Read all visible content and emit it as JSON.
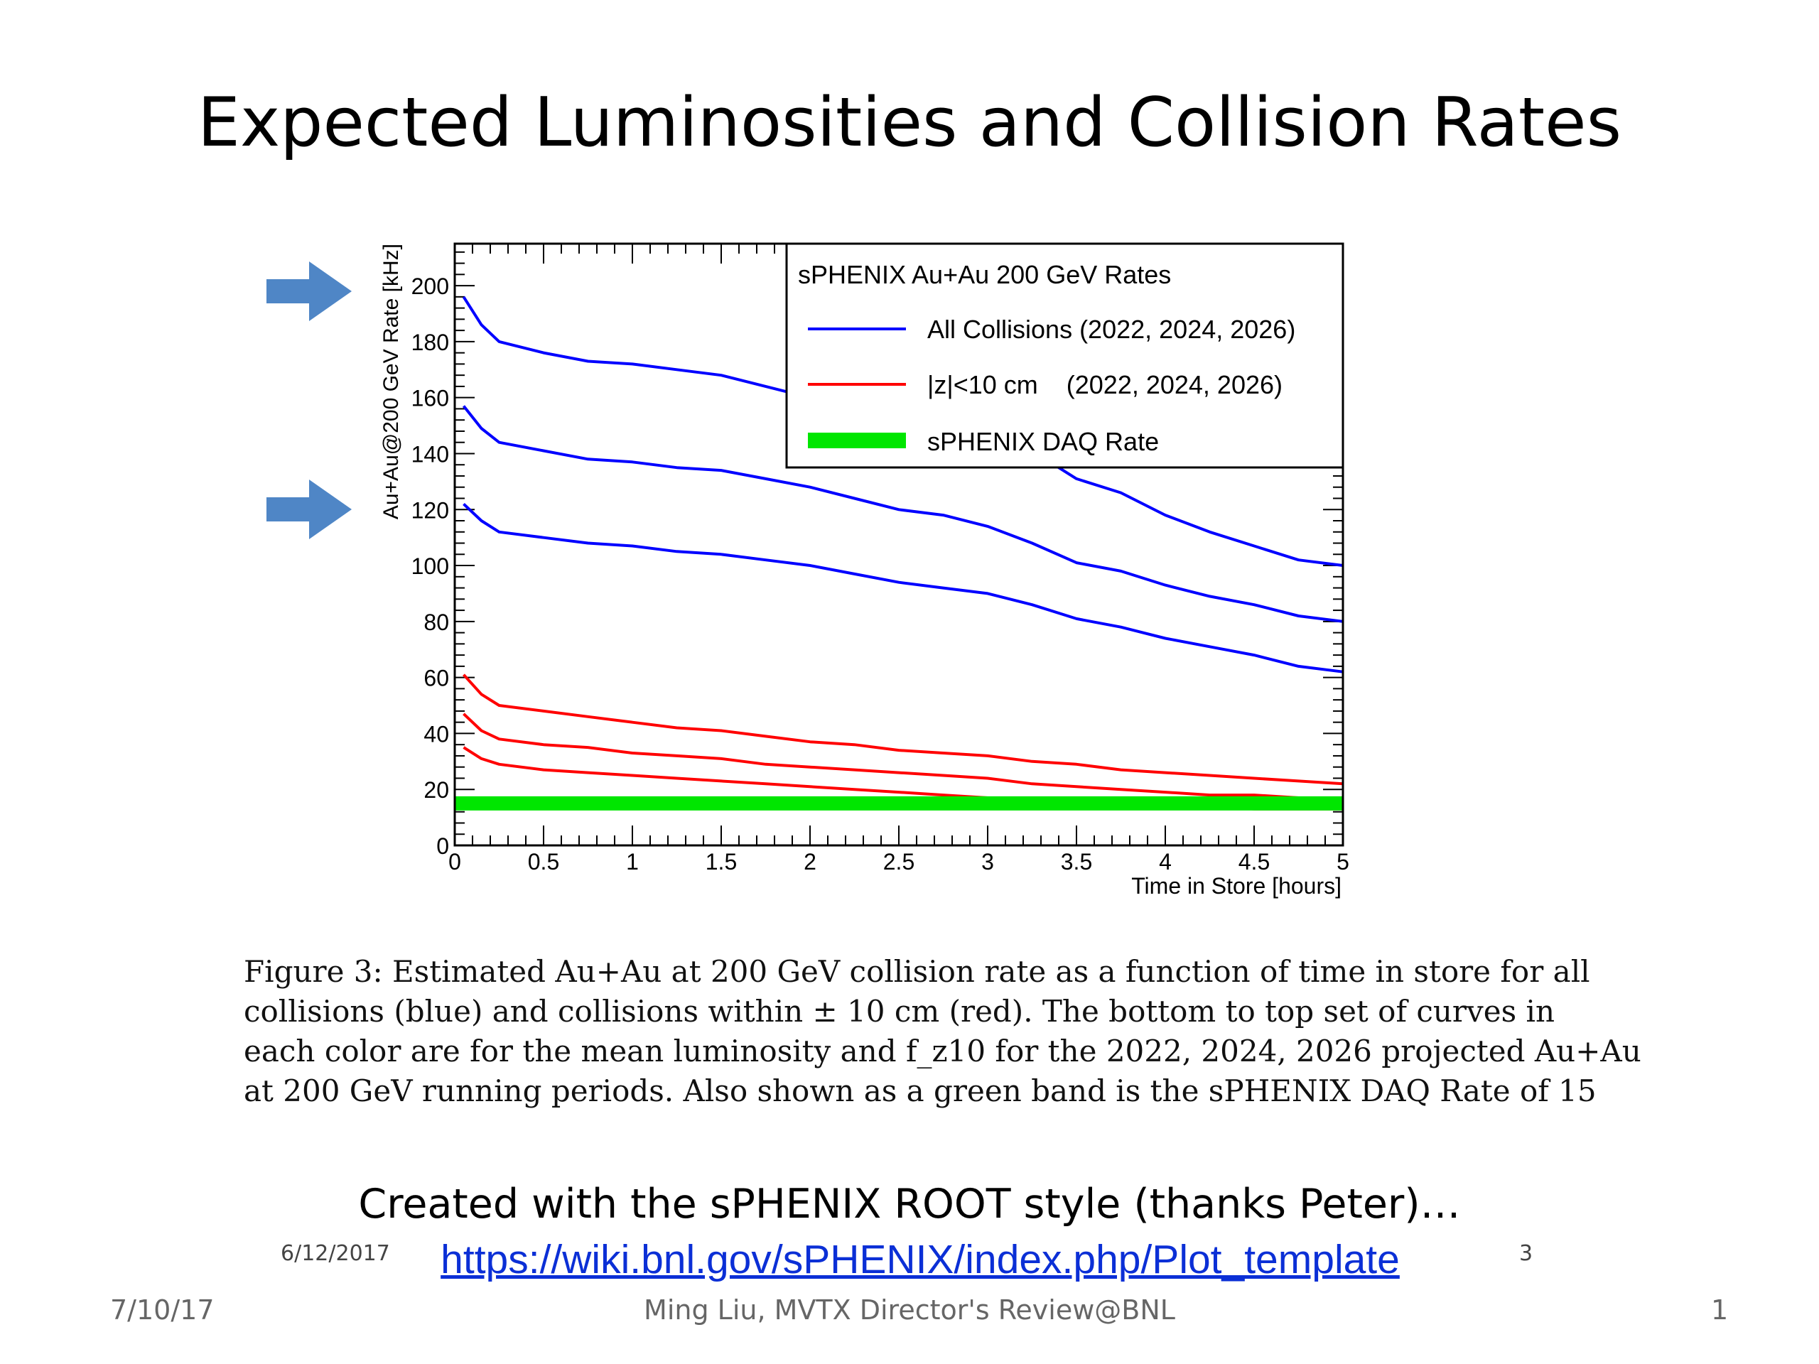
{
  "slide": {
    "title": "Expected Luminosities and Collision Rates",
    "caption_lines": [
      "Figure 3: Estimated Au+Au at 200 GeV collision rate as a function of time in store for all",
      "collisions (blue) and collisions within ± 10 cm (red). The bottom to top set of curves in",
      "each color are for the mean luminosity and f_z10 for the 2022, 2024, 2026 projected Au+Au",
      "at 200 GeV running periods. Also shown as a green band is the sPHENIX DAQ Rate of 15"
    ],
    "created_text": "Created with the sPHENIX ROOT style (thanks Peter)…",
    "link_text": "https://wiki.bnl.gov/sPHENIX/index.php/Plot_template",
    "inner_date": "6/12/2017",
    "inner_page": "3",
    "footer_date": "7/10/17",
    "footer_center": "Ming Liu, MVTX Director's Review@BNL",
    "footer_page": "1",
    "arrow_color": "#4f86c6"
  },
  "chart_data": {
    "type": "line",
    "xlabel": "Time in Store [hours]",
    "ylabel": "Au+Au@200 GeV Rate [kHz]",
    "xlim": [
      0,
      5
    ],
    "ylim": [
      0,
      215
    ],
    "xticks": [
      "0",
      "0.5",
      "1",
      "1.5",
      "2",
      "2.5",
      "3",
      "3.5",
      "4",
      "4.5",
      "5"
    ],
    "yticks": [
      "0",
      "20",
      "40",
      "60",
      "80",
      "100",
      "120",
      "140",
      "160",
      "180",
      "200"
    ],
    "grid": false,
    "legend": {
      "title": "sPHENIX Au+Au 200 GeV Rates",
      "placement": "top-right",
      "entries": [
        {
          "label": "All Collisions (2022, 2024, 2026)",
          "color": "#0000ff"
        },
        {
          "label": "|z|<10 cm    (2022, 2024, 2026)",
          "color": "#ff0000"
        },
        {
          "label": "sPHENIX DAQ Rate",
          "color": "#00e600"
        }
      ]
    },
    "series": [
      {
        "color": "#0000ff",
        "x": [
          0.05,
          0.15,
          0.25,
          0.5,
          0.75,
          1,
          1.25,
          1.5,
          1.75,
          2,
          2.25,
          2.5,
          2.75,
          3,
          3.25,
          3.5,
          3.75,
          4,
          4.25,
          4.5,
          4.75,
          5
        ],
        "y": [
          196,
          186,
          180,
          176,
          173,
          172,
          170,
          168,
          164,
          160,
          156,
          152,
          150,
          146,
          141,
          131,
          126,
          118,
          112,
          107,
          102,
          100
        ]
      },
      {
        "color": "#0000ff",
        "x": [
          0.05,
          0.15,
          0.25,
          0.5,
          0.75,
          1,
          1.25,
          1.5,
          1.75,
          2,
          2.25,
          2.5,
          2.75,
          3,
          3.25,
          3.5,
          3.75,
          4,
          4.25,
          4.5,
          4.75,
          5
        ],
        "y": [
          157,
          149,
          144,
          141,
          138,
          137,
          135,
          134,
          131,
          128,
          124,
          120,
          118,
          114,
          108,
          101,
          98,
          93,
          89,
          86,
          82,
          80
        ]
      },
      {
        "color": "#0000ff",
        "x": [
          0.05,
          0.15,
          0.25,
          0.5,
          0.75,
          1,
          1.25,
          1.5,
          1.75,
          2,
          2.25,
          2.5,
          2.75,
          3,
          3.25,
          3.5,
          3.75,
          4,
          4.25,
          4.5,
          4.75,
          5
        ],
        "y": [
          122,
          116,
          112,
          110,
          108,
          107,
          105,
          104,
          102,
          100,
          97,
          94,
          92,
          90,
          86,
          81,
          78,
          74,
          71,
          68,
          64,
          62
        ]
      },
      {
        "color": "#ff0000",
        "x": [
          0.05,
          0.15,
          0.25,
          0.5,
          0.75,
          1,
          1.25,
          1.5,
          1.75,
          2,
          2.25,
          2.5,
          2.75,
          3,
          3.25,
          3.5,
          3.75,
          4,
          4.25,
          4.5,
          4.75,
          5
        ],
        "y": [
          61,
          54,
          50,
          48,
          46,
          44,
          42,
          41,
          39,
          37,
          36,
          34,
          33,
          32,
          30,
          29,
          27,
          26,
          25,
          24,
          23,
          22
        ]
      },
      {
        "color": "#ff0000",
        "x": [
          0.05,
          0.15,
          0.25,
          0.5,
          0.75,
          1,
          1.25,
          1.5,
          1.75,
          2,
          2.25,
          2.5,
          2.75,
          3,
          3.25,
          3.5,
          3.75,
          4,
          4.25,
          4.5,
          4.75,
          5
        ],
        "y": [
          47,
          41,
          38,
          36,
          35,
          33,
          32,
          31,
          29,
          28,
          27,
          26,
          25,
          24,
          22,
          21,
          20,
          19,
          18,
          18,
          17,
          17
        ]
      },
      {
        "color": "#ff0000",
        "x": [
          0.05,
          0.15,
          0.25,
          0.5,
          0.75,
          1,
          1.25,
          1.5,
          1.75,
          2,
          2.25,
          2.5,
          2.75,
          3,
          3.25,
          3.5,
          3.75,
          4,
          4.25,
          4.5,
          4.75,
          5
        ],
        "y": [
          35,
          31,
          29,
          27,
          26,
          25,
          24,
          23,
          22,
          21,
          20,
          19,
          18,
          17,
          16,
          15,
          15,
          14,
          14,
          13,
          13,
          13
        ]
      }
    ],
    "band": {
      "value": 15,
      "color": "#00e600"
    }
  }
}
